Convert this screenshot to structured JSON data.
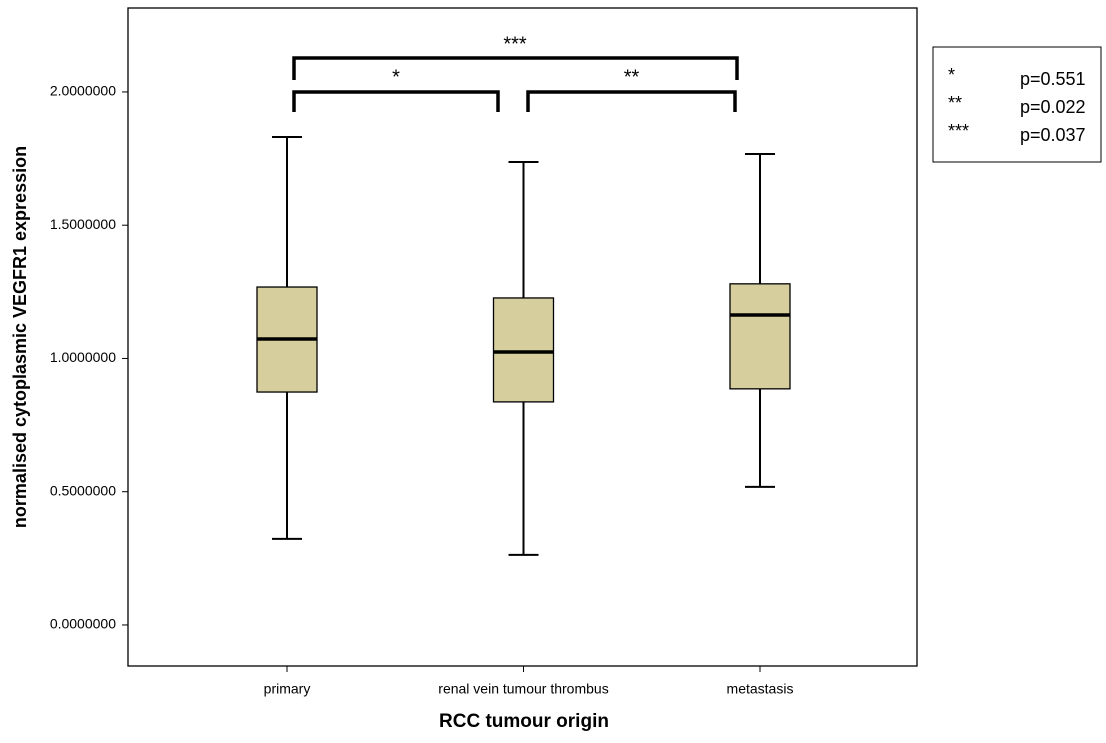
{
  "chart_data": {
    "type": "box",
    "x_label": "RCC tumour origin",
    "y_label": "normalised cytoplasmic VEGFR1 expression",
    "categories": [
      "primary",
      "renal vein tumour thrombus",
      "metastasis"
    ],
    "color": "#d6cf9d",
    "boxes": [
      {
        "min": 0.323,
        "q1": 0.874,
        "median": 1.073,
        "q3": 1.268,
        "max": 1.831
      },
      {
        "min": 0.263,
        "q1": 0.837,
        "median": 1.024,
        "q3": 1.227,
        "max": 1.737
      },
      {
        "min": 0.518,
        "q1": 0.886,
        "median": 1.163,
        "q3": 1.28,
        "max": 1.767
      }
    ],
    "ylim": [
      -0.154,
      2.315
    ],
    "yticks": [
      {
        "value": 0,
        "label": "0.0000000"
      },
      {
        "value": 0.5,
        "label": "0.5000000"
      },
      {
        "value": 1,
        "label": "1.0000000"
      },
      {
        "value": 1.5,
        "label": "1.5000000"
      },
      {
        "value": 2,
        "label": "2.0000000"
      }
    ],
    "significance": [
      {
        "marker": "*",
        "p": "p=0.551"
      },
      {
        "marker": "**",
        "p": "p=0.022"
      },
      {
        "marker": "***",
        "p": "p=0.037"
      }
    ]
  }
}
